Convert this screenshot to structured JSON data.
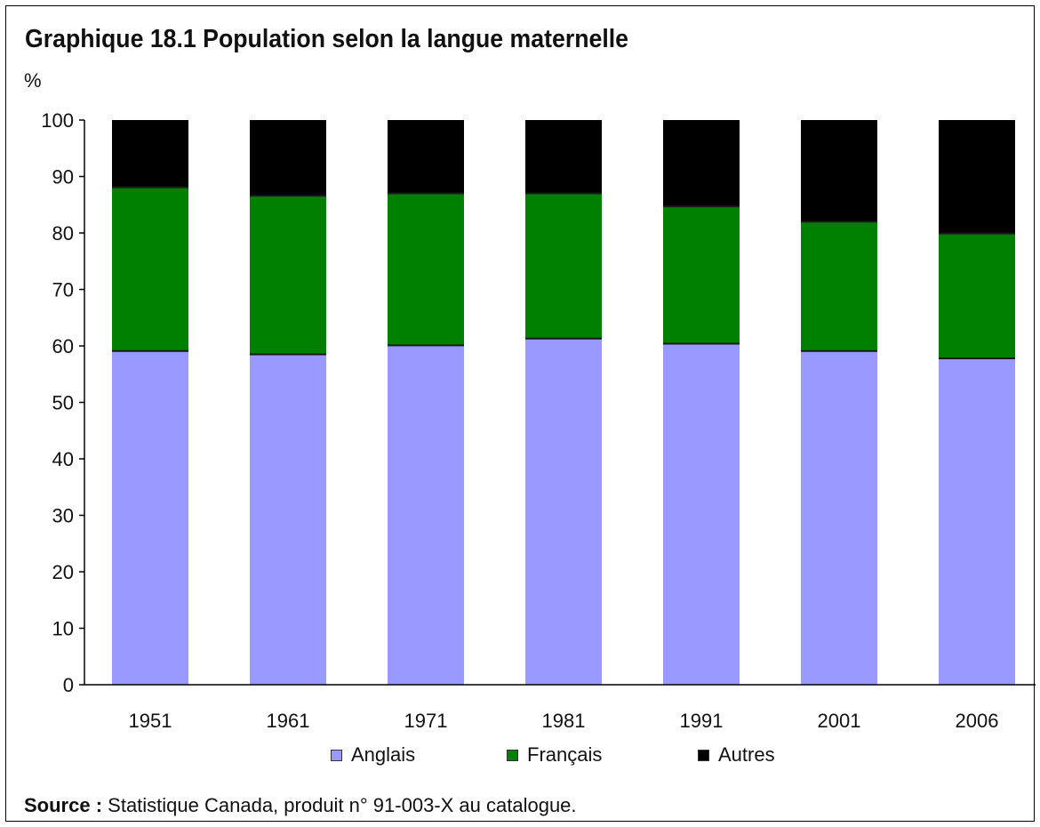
{
  "title": "Graphique 18.1 Population selon la langue maternelle",
  "y_unit": "%",
  "source": {
    "label": "Source :",
    "text": "Statistique Canada, produit n° 91-003-X au catalogue."
  },
  "chart_data": {
    "type": "bar",
    "stacked": true,
    "categories": [
      "1951",
      "1961",
      "1971",
      "1981",
      "1991",
      "2001",
      "2006"
    ],
    "series": [
      {
        "name": "Anglais",
        "color": "#9999ff",
        "values": [
          59.1,
          58.5,
          60.1,
          61.3,
          60.4,
          59.1,
          57.8
        ]
      },
      {
        "name": "Français",
        "color": "#008000",
        "values": [
          29.0,
          28.1,
          26.9,
          25.7,
          24.3,
          22.9,
          22.1
        ]
      },
      {
        "name": "Autres",
        "color": "#000000",
        "values": [
          11.9,
          13.4,
          13.0,
          13.0,
          15.3,
          18.0,
          20.1
        ]
      }
    ],
    "ylim": [
      0,
      100
    ],
    "yticks": [
      "0",
      "10",
      "20",
      "30",
      "40",
      "50",
      "60",
      "70",
      "80",
      "90",
      "100"
    ],
    "grid": false,
    "legend_position": "bottom"
  }
}
